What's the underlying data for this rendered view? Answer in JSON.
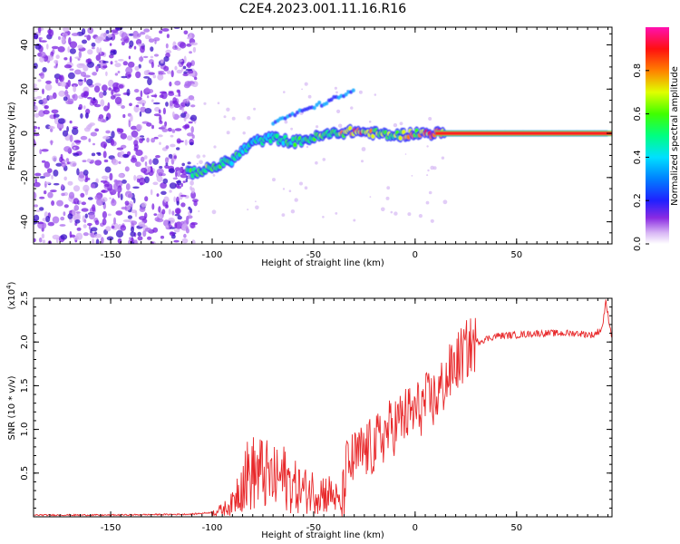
{
  "figure": {
    "title": "C2E4.2023.001.11.16.R16"
  },
  "chart_data": [
    {
      "type": "heatmap",
      "xlabel": "Height of straight line (km)",
      "ylabel": "Frequency (Hz)",
      "xlim": [
        -188,
        97
      ],
      "ylim": [
        -50,
        48
      ],
      "xticks": [
        -150,
        -100,
        -50,
        0,
        50
      ],
      "yticks": [
        -40,
        -20,
        0,
        20,
        40
      ],
      "colorbar": {
        "label": "Normalized spectral amplitude",
        "range": [
          0,
          1
        ],
        "ticks": [
          "0.0",
          "0.2",
          "0.4",
          "0.6",
          "0.8"
        ],
        "colormap": "rainbow (white-violet-blue-cyan-green-yellow-red-magenta)"
      },
      "bands": [
        {
          "x": -112,
          "f": -18,
          "amp": 0.45
        },
        {
          "x": -105,
          "f": -17,
          "amp": 0.5
        },
        {
          "x": -98,
          "f": -15,
          "amp": 0.55
        },
        {
          "x": -90,
          "f": -12,
          "amp": 0.45
        },
        {
          "x": -80,
          "f": -4,
          "amp": 0.35
        },
        {
          "x": -70,
          "f": -2,
          "amp": 0.4
        },
        {
          "x": -60,
          "f": -4,
          "amp": 0.45
        },
        {
          "x": -50,
          "f": -2,
          "amp": 0.5
        },
        {
          "x": -40,
          "f": 0,
          "amp": 0.55
        },
        {
          "x": -30,
          "f": 1,
          "amp": 0.75
        },
        {
          "x": -20,
          "f": 0,
          "amp": 0.6
        },
        {
          "x": -10,
          "f": -1,
          "amp": 0.55
        },
        {
          "x": 0,
          "f": 0,
          "amp": 0.65
        },
        {
          "x": 10,
          "f": 0,
          "amp": 0.8
        },
        {
          "x": 50,
          "f": 0,
          "amp": 0.95
        },
        {
          "x": 95,
          "f": 0,
          "amp": 0.9
        }
      ]
    },
    {
      "type": "line",
      "xlabel": "Height of straight line (km)",
      "ylabel": "SNR (10 * v/v)",
      "exponent_label": "(x10",
      "exponent_power": "4",
      "exponent_close": ")",
      "xlim": [
        -188,
        97
      ],
      "ylim": [
        0,
        2.5
      ],
      "xticks": [
        -150,
        -100,
        -50,
        0,
        50
      ],
      "yticks": [
        "0.5",
        "1.0",
        "1.5",
        "2.0",
        "2.5"
      ],
      "series": [
        {
          "color": "#e8282a",
          "x": [
            -188,
            -150,
            -110,
            -100,
            -95,
            -90,
            -85,
            -80,
            -75,
            -70,
            -65,
            -60,
            -55,
            -50,
            -45,
            -40,
            -36,
            -34,
            -30,
            -25,
            -20,
            -15,
            -10,
            -5,
            0,
            5,
            10,
            15,
            20,
            25,
            30,
            40,
            50,
            60,
            70,
            80,
            88,
            92,
            94,
            97
          ],
          "y": [
            0.02,
            0.02,
            0.03,
            0.05,
            0.08,
            0.15,
            0.45,
            0.5,
            0.5,
            0.42,
            0.45,
            0.35,
            0.3,
            0.3,
            0.28,
            0.25,
            0.1,
            0.55,
            0.65,
            0.75,
            0.8,
            0.95,
            1.05,
            1.15,
            1.2,
            1.3,
            1.35,
            1.55,
            1.75,
            1.9,
            2.0,
            2.07,
            2.08,
            2.1,
            2.1,
            2.1,
            2.08,
            2.15,
            2.45,
            2.05
          ]
        }
      ]
    }
  ]
}
